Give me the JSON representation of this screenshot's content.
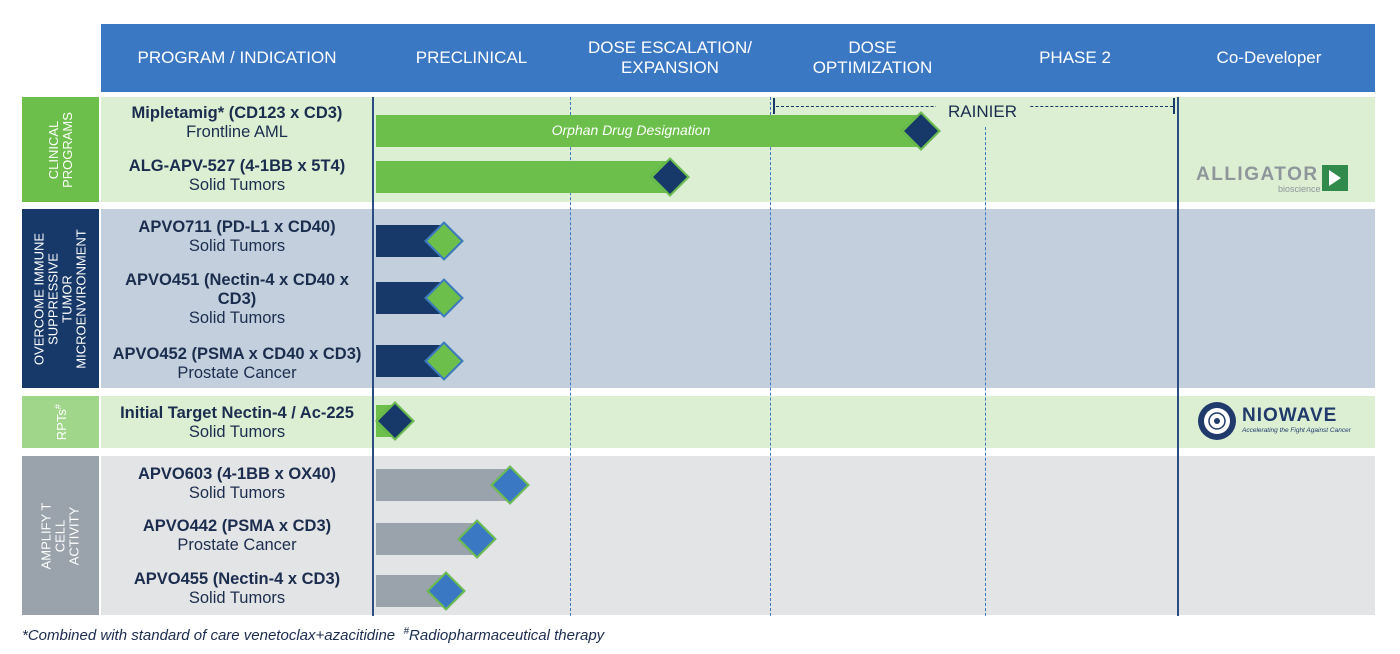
{
  "header": {
    "program": "PROGRAM / INDICATION",
    "preclinical": "PRECLINICAL",
    "dose_escalation": "DOSE ESCALATION/\nEXPANSION",
    "dose_optimization": "DOSE\nOPTIMIZATION",
    "phase2": "PHASE 2",
    "codeveloper": "Co-Developer"
  },
  "groups": [
    {
      "label": "CLINICAL\nPROGRAMS",
      "color": "#6cbf4a",
      "band_color": "#dcefd3"
    },
    {
      "label": "OVERCOME IMMUNE\nSUPPRESSIVE TUMOR\nMICROENVIRONMENT",
      "color": "#17396a",
      "band_color": "#c3cfdd"
    },
    {
      "label": "RPTs",
      "label_sup": "#",
      "color": "#9fd68a",
      "band_color": "#dcefd3"
    },
    {
      "label": "AMPLIFY T CELL\nACTIVITY",
      "color": "#9aa3ab",
      "band_color": "#e3e4e5"
    }
  ],
  "annotations": {
    "orphan": "Orphan Drug Designation",
    "rainier": "RAINIER"
  },
  "codevelopers": {
    "alligator_name": "ALLIGATOR",
    "alligator_sub": "bioscience",
    "niowave_name": "NIOWAVE",
    "niowave_tag": "Accelerating the Fight Against Cancer"
  },
  "footer": {
    "note1": "*Combined with standard of care venetoclax+azacitidine",
    "note2_sup": "#",
    "note2": "Radiopharmaceutical therapy"
  },
  "chart_data": {
    "type": "bar",
    "orientation": "horizontal",
    "stages": [
      "PRECLINICAL",
      "DOSE ESCALATION/ EXPANSION",
      "DOSE OPTIMIZATION",
      "PHASE 2"
    ],
    "xlim": [
      0,
      4
    ],
    "programs": [
      {
        "name": "Mipletamig* (CD123 x CD3)",
        "indication": "Frontline AML",
        "group": 0,
        "progress": 2.7,
        "bar_color": "#6cbf4a",
        "diamond_fill": "#17396a",
        "diamond_border": "#6cbf4a"
      },
      {
        "name": "ALG-APV-527 (4-1BB x 5T4)",
        "indication": "Solid Tumors",
        "group": 0,
        "progress": 1.5,
        "bar_color": "#6cbf4a",
        "diamond_fill": "#17396a",
        "diamond_border": "#6cbf4a"
      },
      {
        "name": "APVO711 (PD-L1 x CD40)",
        "indication": "Solid Tumors",
        "group": 1,
        "progress": 0.35,
        "bar_color": "#17396a",
        "diamond_fill": "#6cbf4a",
        "diamond_border": "#3b78c4"
      },
      {
        "name": "APVO451 (Nectin-4 x CD40 x\nCD3)",
        "indication": "Solid Tumors",
        "group": 1,
        "progress": 0.35,
        "bar_color": "#17396a",
        "diamond_fill": "#6cbf4a",
        "diamond_border": "#3b78c4"
      },
      {
        "name": "APVO452 (PSMA x CD40 x CD3)",
        "indication": "Prostate Cancer",
        "group": 1,
        "progress": 0.35,
        "bar_color": "#17396a",
        "diamond_fill": "#6cbf4a",
        "diamond_border": "#3b78c4"
      },
      {
        "name": "Initial Target Nectin-4 / Ac-225",
        "indication": "Solid Tumors",
        "group": 2,
        "progress": 0.1,
        "bar_color": "#6cbf4a",
        "diamond_fill": "#17396a",
        "diamond_border": "#6cbf4a"
      },
      {
        "name": "APVO603 (4-1BB x OX40)",
        "indication": "Solid Tumors",
        "group": 3,
        "progress": 0.69,
        "bar_color": "#9aa3ab",
        "diamond_fill": "#3b78c4",
        "diamond_border": "#6cbf4a"
      },
      {
        "name": "APVO442 (PSMA x CD3)",
        "indication": "Prostate Cancer",
        "group": 3,
        "progress": 0.52,
        "bar_color": "#9aa3ab",
        "diamond_fill": "#3b78c4",
        "diamond_border": "#6cbf4a"
      },
      {
        "name": "APVO455 (Nectin-4 x CD3)",
        "indication": "Solid Tumors",
        "group": 3,
        "progress": 0.36,
        "bar_color": "#9aa3ab",
        "diamond_fill": "#3b78c4",
        "diamond_border": "#6cbf4a"
      }
    ]
  }
}
